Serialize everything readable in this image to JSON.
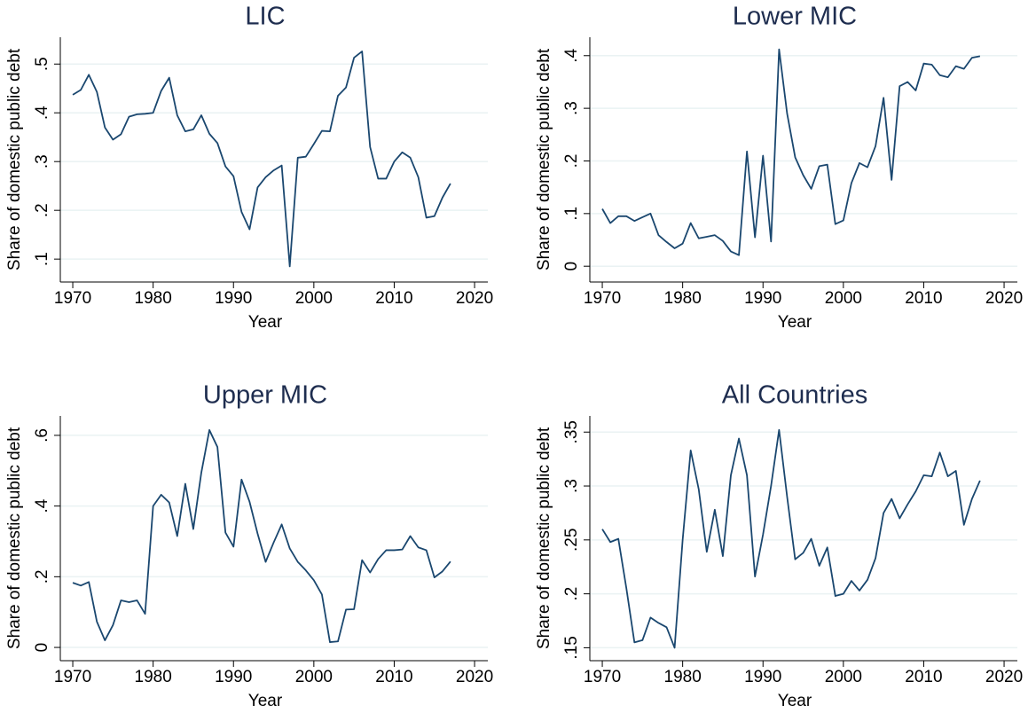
{
  "chart_data": [
    {
      "type": "line",
      "title": "LIC",
      "xlabel": "Year",
      "ylabel": "Share of domestic public debt",
      "color": "#1a476f",
      "grid": true,
      "x": [
        1970,
        1971,
        1972,
        1973,
        1974,
        1975,
        1976,
        1977,
        1978,
        1979,
        1980,
        1981,
        1982,
        1983,
        1984,
        1985,
        1986,
        1987,
        1988,
        1989,
        1990,
        1991,
        1992,
        1993,
        1994,
        1995,
        1996,
        1997,
        1998,
        1999,
        2000,
        2001,
        2002,
        2003,
        2004,
        2005,
        2006,
        2007,
        2008,
        2009,
        2010,
        2011,
        2012,
        2013,
        2014,
        2015,
        2016,
        2017
      ],
      "values": [
        0.437,
        0.447,
        0.478,
        0.443,
        0.37,
        0.345,
        0.356,
        0.392,
        0.397,
        0.398,
        0.4,
        0.445,
        0.472,
        0.395,
        0.362,
        0.366,
        0.395,
        0.357,
        0.338,
        0.29,
        0.27,
        0.197,
        0.161,
        0.247,
        0.268,
        0.282,
        0.292,
        0.085,
        0.308,
        0.31,
        0.336,
        0.363,
        0.362,
        0.435,
        0.452,
        0.513,
        0.526,
        0.33,
        0.265,
        0.265,
        0.3,
        0.319,
        0.308,
        0.268,
        0.185,
        0.188,
        0.226,
        0.255
      ],
      "xlim": [
        1968.45,
        2021.65
      ],
      "xticks": [
        1970,
        1980,
        1990,
        2000,
        2010,
        2020
      ],
      "ylim": [
        0.053,
        0.555
      ],
      "yticks": [
        {
          "value": 0.1,
          "label": ".1"
        },
        {
          "value": 0.2,
          "label": ".2"
        },
        {
          "value": 0.3,
          "label": ".3"
        },
        {
          "value": 0.4,
          "label": ".4"
        },
        {
          "value": 0.5,
          "label": ".5"
        }
      ]
    },
    {
      "type": "line",
      "title": "Lower MIC",
      "xlabel": "Year",
      "ylabel": "Share of domestic public debt",
      "color": "#1a476f",
      "grid": true,
      "x": [
        1970,
        1971,
        1972,
        1973,
        1974,
        1975,
        1976,
        1977,
        1978,
        1979,
        1980,
        1981,
        1982,
        1983,
        1984,
        1985,
        1986,
        1987,
        1988,
        1989,
        1990,
        1991,
        1992,
        1993,
        1994,
        1995,
        1996,
        1997,
        1998,
        1999,
        2000,
        2001,
        2002,
        2003,
        2004,
        2005,
        2006,
        2007,
        2008,
        2009,
        2010,
        2011,
        2012,
        2013,
        2014,
        2015,
        2016,
        2017
      ],
      "values": [
        0.109,
        0.082,
        0.095,
        0.095,
        0.086,
        0.093,
        0.1,
        0.059,
        0.046,
        0.034,
        0.043,
        0.082,
        0.053,
        0.056,
        0.059,
        0.048,
        0.028,
        0.021,
        0.218,
        0.055,
        0.21,
        0.047,
        0.412,
        0.29,
        0.207,
        0.173,
        0.147,
        0.19,
        0.193,
        0.08,
        0.087,
        0.158,
        0.196,
        0.188,
        0.228,
        0.32,
        0.164,
        0.342,
        0.35,
        0.334,
        0.385,
        0.383,
        0.363,
        0.359,
        0.38,
        0.375,
        0.396,
        0.399
      ],
      "xlim": [
        1968.45,
        2021.65
      ],
      "xticks": [
        1970,
        1980,
        1990,
        2000,
        2010,
        2020
      ],
      "ylim": [
        -0.03,
        0.435
      ],
      "yticks": [
        0,
        {
          "value": 0.1,
          "label": ".1"
        },
        {
          "value": 0.2,
          "label": ".2"
        },
        {
          "value": 0.3,
          "label": ".3"
        },
        {
          "value": 0.4,
          "label": ".4"
        }
      ]
    },
    {
      "type": "line",
      "title": "Upper MIC",
      "xlabel": "Year",
      "ylabel": "Share of domestic public debt",
      "color": "#1a476f",
      "grid": true,
      "x": [
        1970,
        1971,
        1972,
        1973,
        1974,
        1975,
        1976,
        1977,
        1978,
        1979,
        1980,
        1981,
        1982,
        1983,
        1984,
        1985,
        1986,
        1987,
        1988,
        1989,
        1990,
        1991,
        1992,
        1993,
        1994,
        1995,
        1996,
        1997,
        1998,
        1999,
        2000,
        2001,
        2002,
        2003,
        2004,
        2005,
        2006,
        2007,
        2008,
        2009,
        2010,
        2011,
        2012,
        2013,
        2014,
        2015,
        2016,
        2017
      ],
      "values": [
        0.183,
        0.175,
        0.185,
        0.073,
        0.02,
        0.063,
        0.133,
        0.128,
        0.133,
        0.095,
        0.4,
        0.432,
        0.41,
        0.315,
        0.463,
        0.335,
        0.495,
        0.615,
        0.567,
        0.325,
        0.285,
        0.475,
        0.412,
        0.322,
        0.242,
        0.297,
        0.348,
        0.28,
        0.242,
        0.218,
        0.19,
        0.15,
        0.015,
        0.017,
        0.107,
        0.108,
        0.247,
        0.212,
        0.25,
        0.275,
        0.275,
        0.277,
        0.315,
        0.283,
        0.275,
        0.198,
        0.215,
        0.243
      ],
      "xlim": [
        1968.45,
        2021.65
      ],
      "xticks": [
        1970,
        1980,
        1990,
        2000,
        2010,
        2020
      ],
      "ylim": [
        -0.0375,
        0.655
      ],
      "yticks": [
        0,
        {
          "value": 0.2,
          "label": ".2"
        },
        {
          "value": 0.4,
          "label": ".4"
        },
        {
          "value": 0.6,
          "label": ".6"
        }
      ]
    },
    {
      "type": "line",
      "title": "All Countries",
      "xlabel": "Year",
      "ylabel": "Share of domestic public debt",
      "color": "#1a476f",
      "grid": true,
      "x": [
        1970,
        1971,
        1972,
        1973,
        1974,
        1975,
        1976,
        1977,
        1978,
        1979,
        1980,
        1981,
        1982,
        1983,
        1984,
        1985,
        1986,
        1987,
        1988,
        1989,
        1990,
        1991,
        1992,
        1993,
        1994,
        1995,
        1996,
        1997,
        1998,
        1999,
        2000,
        2001,
        2002,
        2003,
        2004,
        2005,
        2006,
        2007,
        2008,
        2009,
        2010,
        2011,
        2012,
        2013,
        2014,
        2015,
        2016,
        2017
      ],
      "values": [
        0.26,
        0.248,
        0.251,
        0.205,
        0.155,
        0.157,
        0.178,
        0.173,
        0.169,
        0.15,
        0.25,
        0.333,
        0.297,
        0.239,
        0.278,
        0.235,
        0.31,
        0.344,
        0.31,
        0.216,
        0.255,
        0.3,
        0.352,
        0.29,
        0.232,
        0.238,
        0.251,
        0.226,
        0.243,
        0.198,
        0.2,
        0.212,
        0.203,
        0.213,
        0.233,
        0.275,
        0.288,
        0.27,
        0.283,
        0.295,
        0.31,
        0.309,
        0.331,
        0.309,
        0.314,
        0.264,
        0.288,
        0.305
      ],
      "xlim": [
        1968.45,
        2021.65
      ],
      "xticks": [
        1970,
        1980,
        1990,
        2000,
        2010,
        2020
      ],
      "ylim": [
        0.138,
        0.365
      ],
      "yticks": [
        {
          "value": 0.15,
          "label": ".15"
        },
        {
          "value": 0.2,
          "label": ".2"
        },
        {
          "value": 0.25,
          "label": ".25"
        },
        {
          "value": 0.3,
          "label": ".3"
        },
        {
          "value": 0.35,
          "label": ".35"
        }
      ]
    }
  ]
}
